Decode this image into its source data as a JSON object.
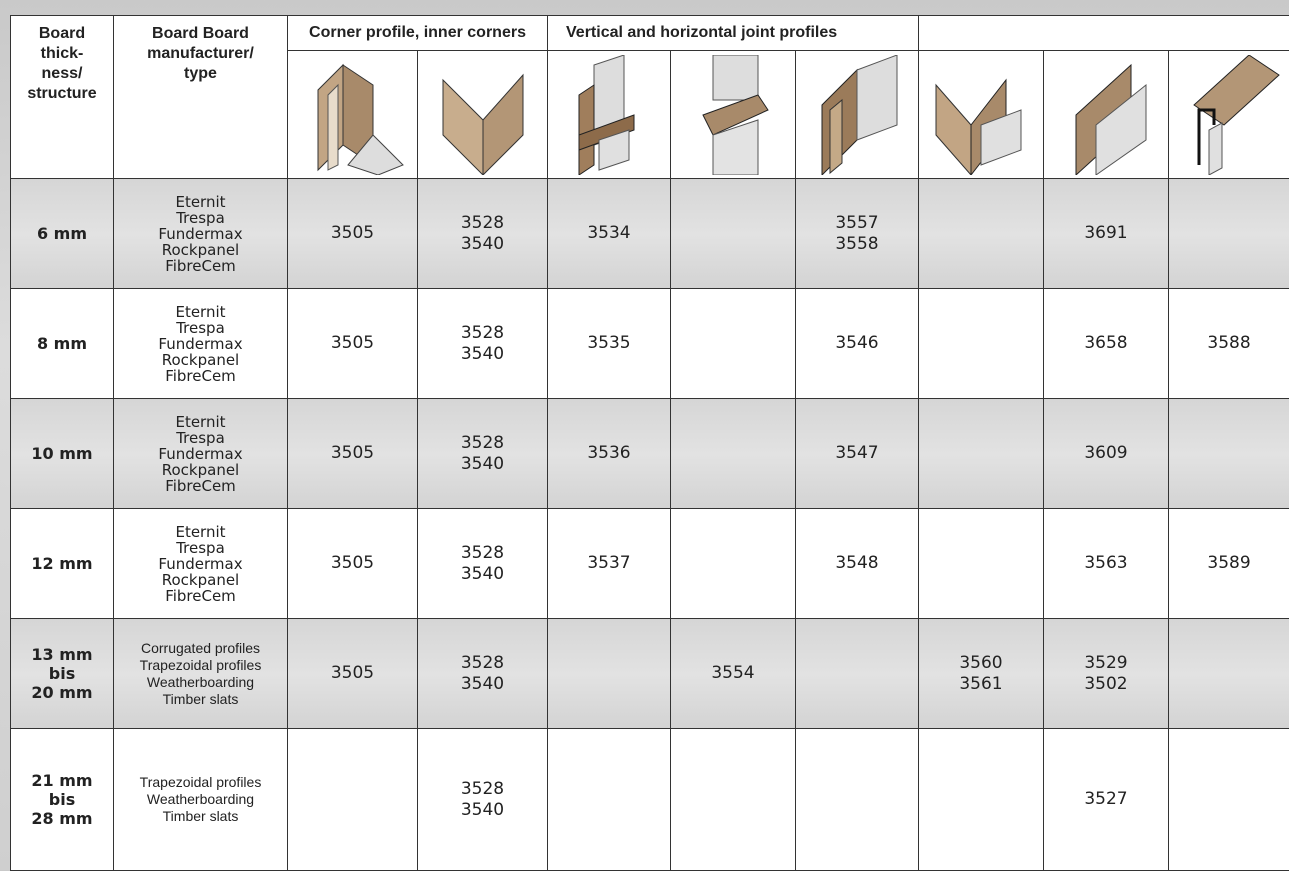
{
  "table": {
    "header": {
      "thickness": "Board\nthick-\nness/\nstructure",
      "manufacturer": "Board Board\nmanufacturer/\ntype",
      "group_corner": "Corner profile, inner corners",
      "group_joint": "Vertical and horizontal joint profiles"
    },
    "rows": [
      {
        "thickness": "6 mm",
        "manufacturer": "Eternit\nTrespa\nFundermax\nRockpanel\nFibreCem",
        "cells": [
          "3505",
          "3528\n3540",
          "3534",
          null,
          "3557\n3558",
          null,
          "3691",
          null
        ]
      },
      {
        "thickness": "8 mm",
        "manufacturer": "Eternit\nTrespa\nFundermax\nRockpanel\nFibreCem",
        "cells": [
          "3505",
          "3528\n3540",
          "3535",
          null,
          "3546",
          null,
          "3658",
          "3588"
        ]
      },
      {
        "thickness": "10 mm",
        "manufacturer": "Eternit\nTrespa\nFundermax\nRockpanel\nFibreCem",
        "cells": [
          "3505",
          "3528\n3540",
          "3536",
          null,
          "3547",
          null,
          "3609",
          null
        ]
      },
      {
        "thickness": "12 mm",
        "manufacturer": "Eternit\nTrespa\nFundermax\nRockpanel\nFibreCem",
        "cells": [
          "3505",
          "3528\n3540",
          "3537",
          null,
          "3548",
          null,
          "3563",
          "3589"
        ]
      },
      {
        "thickness": "13 mm\nbis\n20 mm",
        "manufacturer": "Corrugated profiles\nTrapezoidal profiles\nWeatherboarding\nTimber slats",
        "cells": [
          "3505",
          "3528\n3540",
          null,
          "3554",
          null,
          "3560\n3561",
          "3529\n3502",
          null
        ]
      },
      {
        "thickness": "21 mm\nbis\n28 mm",
        "manufacturer": "Trapezoidal profiles\nWeatherboarding\nTimber slats",
        "cells": [
          null,
          "3528\n3540",
          null,
          null,
          null,
          null,
          "3527",
          null
        ]
      }
    ]
  }
}
